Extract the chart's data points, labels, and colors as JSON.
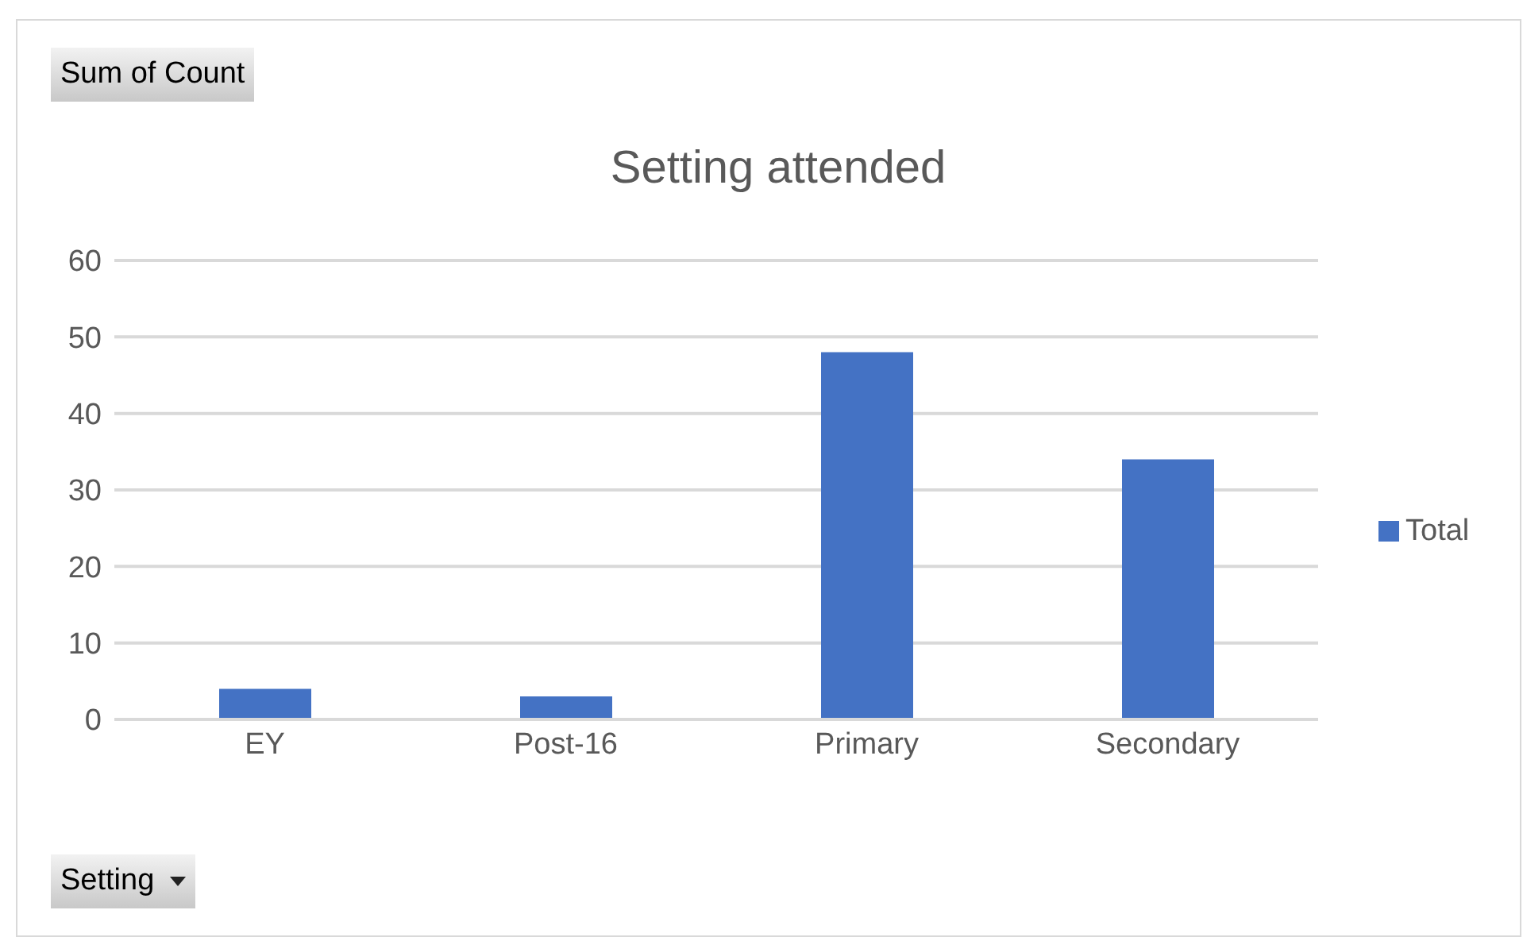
{
  "chart_data": {
    "type": "bar",
    "title": "Setting attended",
    "categories": [
      "EY",
      "Post-16",
      "Primary",
      "Secondary"
    ],
    "series": [
      {
        "name": "Total",
        "color": "#4472c4",
        "values": [
          4,
          3,
          48,
          34
        ]
      }
    ],
    "ylim": [
      0,
      60
    ],
    "yticks": [
      0,
      10,
      20,
      30,
      40,
      50,
      60
    ],
    "grid": "y",
    "legend": "right",
    "annotations": [
      "Sum of Count",
      "Setting"
    ]
  }
}
